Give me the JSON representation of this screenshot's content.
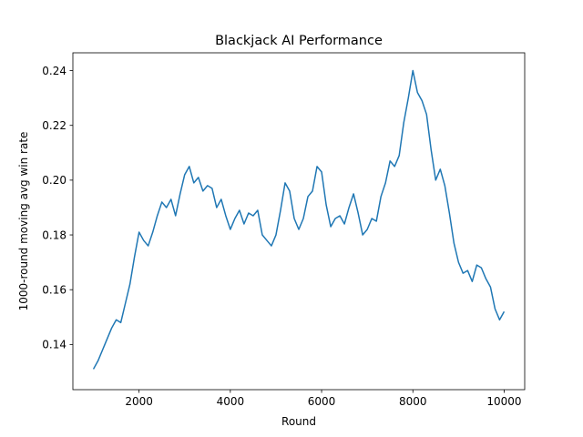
{
  "chart_data": {
    "type": "line",
    "title": "Blackjack AI Performance",
    "xlabel": "Round",
    "ylabel": "1000-round moving avg win rate",
    "xlim": [
      550,
      10450
    ],
    "ylim": [
      0.1235,
      0.2465
    ],
    "xticks": [
      2000,
      4000,
      6000,
      8000,
      10000
    ],
    "yticks": [
      0.14,
      0.16,
      0.18,
      0.2,
      0.22,
      0.24
    ],
    "ytick_labels": [
      "0.14",
      "0.16",
      "0.18",
      "0.20",
      "0.22",
      "0.24"
    ],
    "grid": false,
    "legend": "none",
    "series": [
      {
        "color": "#1f77b4",
        "x": [
          1000,
          1100,
          1200,
          1300,
          1400,
          1500,
          1600,
          1700,
          1800,
          1900,
          2000,
          2100,
          2200,
          2300,
          2400,
          2500,
          2600,
          2700,
          2800,
          2900,
          3000,
          3100,
          3200,
          3300,
          3400,
          3500,
          3600,
          3700,
          3800,
          3900,
          4000,
          4100,
          4200,
          4300,
          4400,
          4500,
          4600,
          4700,
          4800,
          4900,
          5000,
          5100,
          5200,
          5300,
          5400,
          5500,
          5600,
          5700,
          5800,
          5900,
          6000,
          6100,
          6200,
          6300,
          6400,
          6500,
          6600,
          6700,
          6800,
          6900,
          7000,
          7100,
          7200,
          7300,
          7400,
          7500,
          7600,
          7700,
          7800,
          7900,
          8000,
          8100,
          8200,
          8300,
          8400,
          8500,
          8600,
          8700,
          8800,
          8900,
          9000,
          9100,
          9200,
          9300,
          9400,
          9500,
          9600,
          9700,
          9800,
          9900,
          10000
        ],
        "y": [
          0.131,
          0.134,
          0.138,
          0.142,
          0.146,
          0.149,
          0.148,
          0.155,
          0.162,
          0.172,
          0.181,
          0.178,
          0.176,
          0.181,
          0.187,
          0.192,
          0.19,
          0.193,
          0.187,
          0.195,
          0.202,
          0.205,
          0.199,
          0.201,
          0.196,
          0.198,
          0.197,
          0.19,
          0.193,
          0.187,
          0.182,
          0.186,
          0.189,
          0.184,
          0.188,
          0.187,
          0.189,
          0.18,
          0.178,
          0.176,
          0.18,
          0.189,
          0.199,
          0.196,
          0.186,
          0.182,
          0.186,
          0.194,
          0.196,
          0.205,
          0.203,
          0.191,
          0.183,
          0.186,
          0.187,
          0.184,
          0.19,
          0.195,
          0.188,
          0.18,
          0.182,
          0.186,
          0.185,
          0.194,
          0.199,
          0.207,
          0.205,
          0.209,
          0.221,
          0.23,
          0.24,
          0.232,
          0.229,
          0.224,
          0.211,
          0.2,
          0.204,
          0.198,
          0.188,
          0.177,
          0.17,
          0.166,
          0.167,
          0.163,
          0.169,
          0.168,
          0.164,
          0.161,
          0.153,
          0.149,
          0.152
        ]
      }
    ]
  }
}
